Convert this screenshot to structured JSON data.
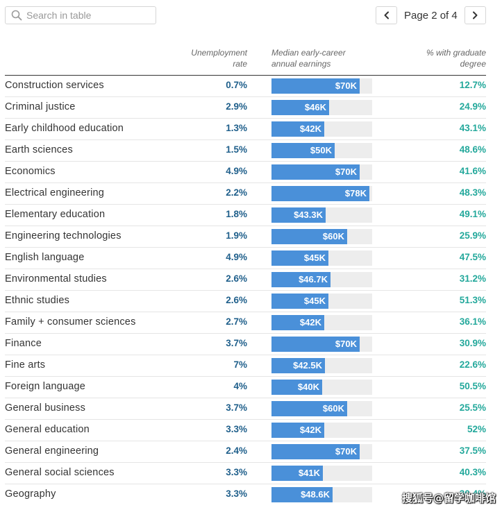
{
  "search": {
    "placeholder": "Search in table",
    "value": ""
  },
  "pager": {
    "text": "Page 2 of 4",
    "prev_icon": "chevron-left-icon",
    "next_icon": "chevron-right-icon"
  },
  "headers": {
    "unemployment": [
      "Unemployment",
      "rate"
    ],
    "earnings": [
      "Median early-career",
      "annual earnings"
    ],
    "graduate": [
      "% with graduate",
      "degree"
    ]
  },
  "colors": {
    "bar": "#4a90d9",
    "track": "#ededed",
    "unemployment_text": "#1f5f8b",
    "graduate_text": "#23a89b"
  },
  "earnings_scale_max": 80000,
  "rows": [
    {
      "major": "Construction services",
      "unemployment": "0.7%",
      "earnings_label": "$70K",
      "earnings": 70000,
      "graduate": "12.7%"
    },
    {
      "major": "Criminal justice",
      "unemployment": "2.9%",
      "earnings_label": "$46K",
      "earnings": 46000,
      "graduate": "24.9%"
    },
    {
      "major": "Early childhood education",
      "unemployment": "1.3%",
      "earnings_label": "$42K",
      "earnings": 42000,
      "graduate": "43.1%"
    },
    {
      "major": "Earth sciences",
      "unemployment": "1.5%",
      "earnings_label": "$50K",
      "earnings": 50000,
      "graduate": "48.6%"
    },
    {
      "major": "Economics",
      "unemployment": "4.9%",
      "earnings_label": "$70K",
      "earnings": 70000,
      "graduate": "41.6%"
    },
    {
      "major": "Electrical engineering",
      "unemployment": "2.2%",
      "earnings_label": "$78K",
      "earnings": 78000,
      "graduate": "48.3%"
    },
    {
      "major": "Elementary education",
      "unemployment": "1.8%",
      "earnings_label": "$43.3K",
      "earnings": 43300,
      "graduate": "49.1%"
    },
    {
      "major": "Engineering technologies",
      "unemployment": "1.9%",
      "earnings_label": "$60K",
      "earnings": 60000,
      "graduate": "25.9%"
    },
    {
      "major": "English language",
      "unemployment": "4.9%",
      "earnings_label": "$45K",
      "earnings": 45000,
      "graduate": "47.5%"
    },
    {
      "major": "Environmental studies",
      "unemployment": "2.6%",
      "earnings_label": "$46.7K",
      "earnings": 46700,
      "graduate": "31.2%"
    },
    {
      "major": "Ethnic studies",
      "unemployment": "2.6%",
      "earnings_label": "$45K",
      "earnings": 45000,
      "graduate": "51.3%"
    },
    {
      "major": "Family + consumer sciences",
      "unemployment": "2.7%",
      "earnings_label": "$42K",
      "earnings": 42000,
      "graduate": "36.1%"
    },
    {
      "major": "Finance",
      "unemployment": "3.7%",
      "earnings_label": "$70K",
      "earnings": 70000,
      "graduate": "30.9%"
    },
    {
      "major": "Fine arts",
      "unemployment": "7%",
      "earnings_label": "$42.5K",
      "earnings": 42500,
      "graduate": "22.6%"
    },
    {
      "major": "Foreign language",
      "unemployment": "4%",
      "earnings_label": "$40K",
      "earnings": 40000,
      "graduate": "50.5%"
    },
    {
      "major": "General business",
      "unemployment": "3.7%",
      "earnings_label": "$60K",
      "earnings": 60000,
      "graduate": "25.5%"
    },
    {
      "major": "General education",
      "unemployment": "3.3%",
      "earnings_label": "$42K",
      "earnings": 42000,
      "graduate": "52%"
    },
    {
      "major": "General engineering",
      "unemployment": "2.4%",
      "earnings_label": "$70K",
      "earnings": 70000,
      "graduate": "37.5%"
    },
    {
      "major": "General social sciences",
      "unemployment": "3.3%",
      "earnings_label": "$41K",
      "earnings": 41000,
      "graduate": "40.3%"
    },
    {
      "major": "Geography",
      "unemployment": "3.3%",
      "earnings_label": "$48.6K",
      "earnings": 48600,
      "graduate": "30.4%"
    }
  ],
  "watermark": "搜狐号@留学咖啡馆"
}
